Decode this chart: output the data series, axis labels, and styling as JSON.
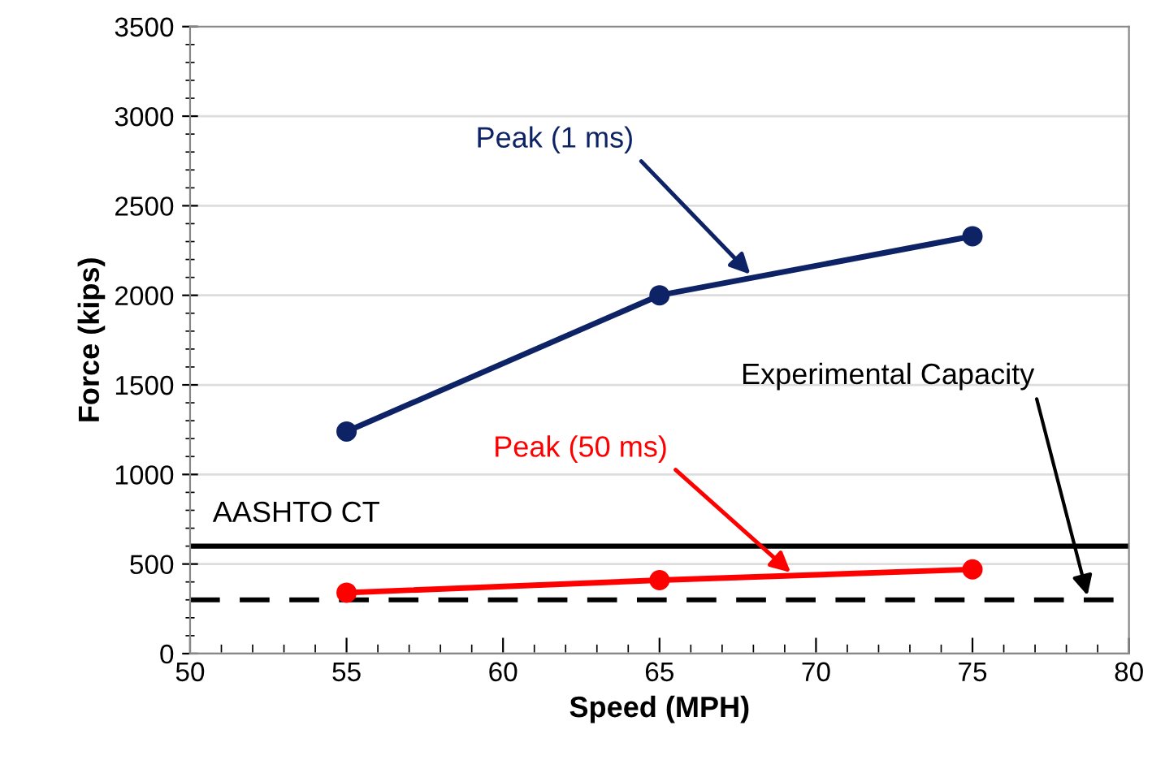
{
  "chart_data": {
    "type": "line",
    "xlabel": "Speed (MPH)",
    "ylabel": "Force (kips)",
    "x": [
      55,
      65,
      75
    ],
    "series": [
      {
        "name": "Peak (1 ms)",
        "color": "#0d2366",
        "values": [
          1240,
          2000,
          2330
        ]
      },
      {
        "name": "Peak (50 ms)",
        "color": "#ff0000",
        "values": [
          340,
          410,
          470
        ]
      }
    ],
    "xlim": [
      50,
      80
    ],
    "xticks": [
      50,
      55,
      60,
      65,
      70,
      75,
      80
    ],
    "ylim": [
      0,
      3500
    ],
    "yticks": [
      0,
      500,
      1000,
      1500,
      2000,
      2500,
      3000,
      3500
    ],
    "grid": "y",
    "marker": "circle",
    "line_style": "solid",
    "legend": false,
    "ref_lines": [
      {
        "axis": "y",
        "value": 600,
        "label": "AASHTO CT",
        "color": "#000000",
        "line_style": "solid"
      },
      {
        "axis": "y",
        "value": 300,
        "label": "Experimental Capacity",
        "color": "#000000",
        "line_style": "dashed"
      }
    ]
  }
}
